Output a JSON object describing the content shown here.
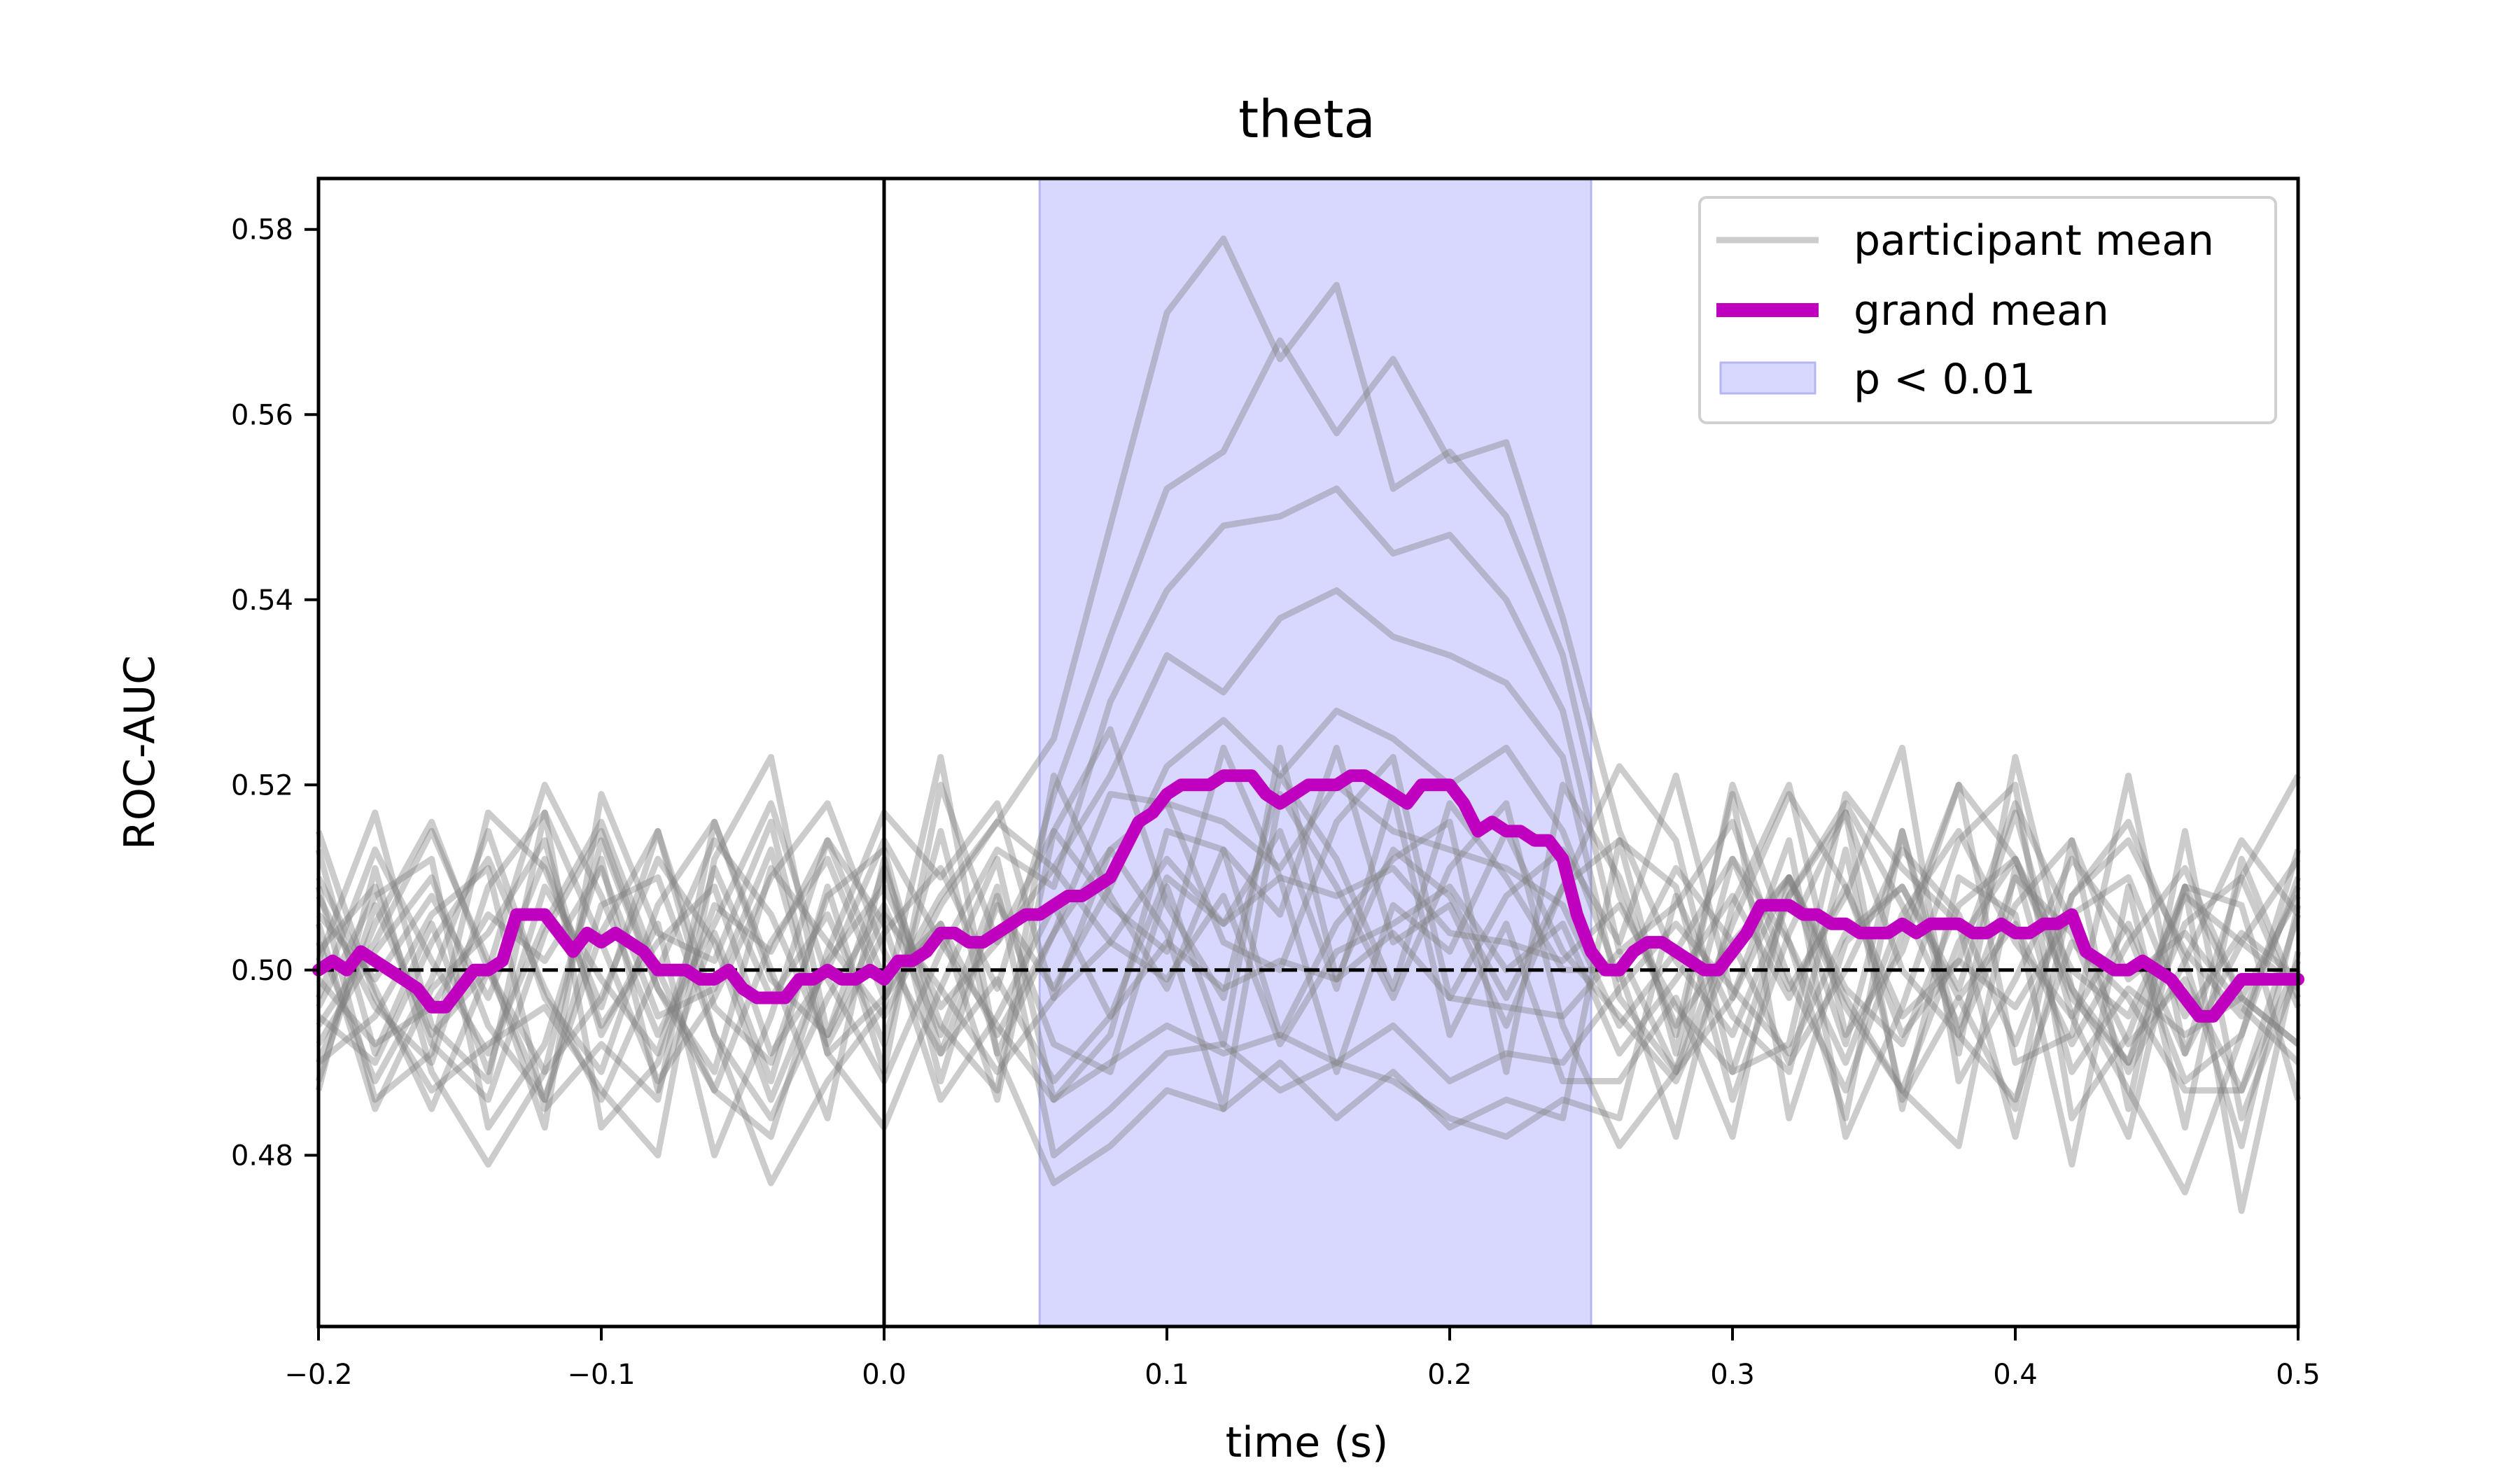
{
  "chart_data": {
    "type": "line",
    "title": "theta",
    "xlabel": "time (s)",
    "ylabel": "ROC-AUC",
    "xlim": [
      -0.2,
      0.5
    ],
    "ylim": [
      0.4615,
      0.5855
    ],
    "xticks": [
      -0.2,
      -0.1,
      0.0,
      0.1,
      0.2,
      0.3,
      0.4,
      0.5
    ],
    "xtick_labels": [
      "−0.2",
      "−0.1",
      "0.0",
      "0.1",
      "0.2",
      "0.3",
      "0.4",
      "0.5"
    ],
    "yticks": [
      0.48,
      0.5,
      0.52,
      0.54,
      0.56,
      0.58
    ],
    "ytick_labels": [
      "0.48",
      "0.50",
      "0.52",
      "0.54",
      "0.56",
      "0.58"
    ],
    "grid": false,
    "legend_position": "top-right",
    "reference_lines": {
      "chance_level": 0.5,
      "stimulus_onset": 0.0
    },
    "significance_window": {
      "label": "p < 0.01",
      "start": 0.055,
      "end": 0.25,
      "color": "#d8d8ff"
    },
    "series": [
      {
        "name": "grand mean",
        "color": "#bf00bf",
        "x": [
          -0.2,
          -0.195,
          -0.19,
          -0.185,
          -0.18,
          -0.175,
          -0.17,
          -0.165,
          -0.16,
          -0.155,
          -0.15,
          -0.145,
          -0.14,
          -0.135,
          -0.13,
          -0.125,
          -0.12,
          -0.115,
          -0.11,
          -0.105,
          -0.1,
          -0.095,
          -0.09,
          -0.085,
          -0.08,
          -0.075,
          -0.07,
          -0.065,
          -0.06,
          -0.055,
          -0.05,
          -0.045,
          -0.04,
          -0.035,
          -0.03,
          -0.025,
          -0.02,
          -0.015,
          -0.01,
          -0.005,
          0.0,
          0.005,
          0.01,
          0.015,
          0.02,
          0.025,
          0.03,
          0.035,
          0.04,
          0.045,
          0.05,
          0.055,
          0.06,
          0.065,
          0.07,
          0.075,
          0.08,
          0.085,
          0.09,
          0.095,
          0.1,
          0.105,
          0.11,
          0.115,
          0.12,
          0.125,
          0.13,
          0.135,
          0.14,
          0.145,
          0.15,
          0.155,
          0.16,
          0.165,
          0.17,
          0.175,
          0.18,
          0.185,
          0.19,
          0.195,
          0.2,
          0.205,
          0.21,
          0.215,
          0.22,
          0.225,
          0.23,
          0.235,
          0.24,
          0.245,
          0.25,
          0.255,
          0.26,
          0.265,
          0.27,
          0.275,
          0.28,
          0.285,
          0.29,
          0.295,
          0.3,
          0.305,
          0.31,
          0.315,
          0.32,
          0.325,
          0.33,
          0.335,
          0.34,
          0.345,
          0.35,
          0.355,
          0.36,
          0.365,
          0.37,
          0.375,
          0.38,
          0.385,
          0.39,
          0.395,
          0.4,
          0.405,
          0.41,
          0.415,
          0.42,
          0.425,
          0.43,
          0.435,
          0.44,
          0.445,
          0.45,
          0.455,
          0.46,
          0.465,
          0.47,
          0.475,
          0.48,
          0.485,
          0.49,
          0.495,
          0.5
        ],
        "values": [
          0.5,
          0.501,
          0.5,
          0.502,
          0.501,
          0.5,
          0.499,
          0.498,
          0.496,
          0.496,
          0.498,
          0.5,
          0.5,
          0.501,
          0.506,
          0.506,
          0.506,
          0.504,
          0.502,
          0.504,
          0.503,
          0.504,
          0.503,
          0.502,
          0.5,
          0.5,
          0.5,
          0.499,
          0.499,
          0.5,
          0.498,
          0.497,
          0.497,
          0.497,
          0.499,
          0.499,
          0.5,
          0.499,
          0.499,
          0.5,
          0.499,
          0.501,
          0.501,
          0.502,
          0.504,
          0.504,
          0.503,
          0.503,
          0.504,
          0.505,
          0.506,
          0.506,
          0.507,
          0.508,
          0.508,
          0.509,
          0.51,
          0.513,
          0.516,
          0.517,
          0.519,
          0.52,
          0.52,
          0.52,
          0.521,
          0.521,
          0.521,
          0.519,
          0.518,
          0.519,
          0.52,
          0.52,
          0.52,
          0.521,
          0.521,
          0.52,
          0.519,
          0.518,
          0.52,
          0.52,
          0.52,
          0.518,
          0.515,
          0.516,
          0.515,
          0.515,
          0.514,
          0.514,
          0.512,
          0.506,
          0.502,
          0.5,
          0.5,
          0.502,
          0.503,
          0.503,
          0.502,
          0.501,
          0.5,
          0.5,
          0.502,
          0.504,
          0.507,
          0.507,
          0.507,
          0.506,
          0.506,
          0.505,
          0.505,
          0.504,
          0.504,
          0.504,
          0.505,
          0.504,
          0.505,
          0.505,
          0.505,
          0.504,
          0.504,
          0.505,
          0.504,
          0.504,
          0.505,
          0.505,
          0.506,
          0.502,
          0.501,
          0.5,
          0.5,
          0.501,
          0.5,
          0.499,
          0.497,
          0.495,
          0.495,
          0.497,
          0.499,
          0.499,
          0.499,
          0.499,
          0.499
        ]
      }
    ],
    "participant_series": {
      "name": "participant mean",
      "color": "#808080",
      "opacity": 0.4,
      "x": [
        -0.2,
        -0.18,
        -0.16,
        -0.14,
        -0.12,
        -0.1,
        -0.08,
        -0.06,
        -0.04,
        -0.02,
        0.0,
        0.02,
        0.04,
        0.06,
        0.08,
        0.1,
        0.12,
        0.14,
        0.16,
        0.18,
        0.2,
        0.22,
        0.24,
        0.26,
        0.28,
        0.3,
        0.32,
        0.34,
        0.36,
        0.38,
        0.4,
        0.42,
        0.44,
        0.46,
        0.48,
        0.5
      ],
      "lines": [
        [
          0.502,
          0.509,
          0.492,
          0.486,
          0.504,
          0.515,
          0.498,
          0.489,
          0.511,
          0.503,
          0.495,
          0.507,
          0.516,
          0.525,
          0.548,
          0.571,
          0.579,
          0.566,
          0.574,
          0.552,
          0.556,
          0.549,
          0.534,
          0.508,
          0.494,
          0.503,
          0.51,
          0.498,
          0.492,
          0.507,
          0.512,
          0.5,
          0.495,
          0.508,
          0.503,
          0.498
        ],
        [
          0.495,
          0.49,
          0.503,
          0.512,
          0.498,
          0.486,
          0.5,
          0.514,
          0.506,
          0.492,
          0.504,
          0.511,
          0.498,
          0.519,
          0.536,
          0.552,
          0.556,
          0.568,
          0.558,
          0.566,
          0.555,
          0.557,
          0.538,
          0.515,
          0.501,
          0.493,
          0.508,
          0.518,
          0.507,
          0.494,
          0.51,
          0.504,
          0.489,
          0.501,
          0.514,
          0.506
        ],
        [
          0.51,
          0.498,
          0.485,
          0.5,
          0.52,
          0.508,
          0.493,
          0.505,
          0.518,
          0.499,
          0.488,
          0.502,
          0.513,
          0.509,
          0.529,
          0.541,
          0.548,
          0.549,
          0.552,
          0.545,
          0.547,
          0.54,
          0.528,
          0.502,
          0.507,
          0.516,
          0.499,
          0.487,
          0.504,
          0.52,
          0.512,
          0.497,
          0.49,
          0.505,
          0.51,
          0.496
        ],
        [
          0.49,
          0.505,
          0.516,
          0.5,
          0.489,
          0.497,
          0.512,
          0.503,
          0.486,
          0.501,
          0.509,
          0.496,
          0.503,
          0.511,
          0.521,
          0.534,
          0.53,
          0.538,
          0.541,
          0.536,
          0.534,
          0.531,
          0.523,
          0.497,
          0.489,
          0.505,
          0.519,
          0.509,
          0.495,
          0.501,
          0.518,
          0.505,
          0.492,
          0.499,
          0.487,
          0.501
        ],
        [
          0.508,
          0.496,
          0.49,
          0.509,
          0.517,
          0.503,
          0.488,
          0.497,
          0.51,
          0.518,
          0.502,
          0.491,
          0.507,
          0.498,
          0.509,
          0.522,
          0.527,
          0.521,
          0.528,
          0.525,
          0.52,
          0.524,
          0.515,
          0.499,
          0.511,
          0.503,
          0.49,
          0.5,
          0.513,
          0.506,
          0.492,
          0.508,
          0.514,
          0.502,
          0.495,
          0.509
        ],
        [
          0.497,
          0.513,
          0.501,
          0.491,
          0.505,
          0.516,
          0.5,
          0.487,
          0.503,
          0.512,
          0.497,
          0.505,
          0.493,
          0.504,
          0.513,
          0.518,
          0.516,
          0.511,
          0.52,
          0.515,
          0.513,
          0.511,
          0.507,
          0.494,
          0.502,
          0.512,
          0.503,
          0.49,
          0.506,
          0.515,
          0.503,
          0.495,
          0.505,
          0.491,
          0.503,
          0.512
        ],
        [
          0.503,
          0.488,
          0.499,
          0.515,
          0.497,
          0.489,
          0.507,
          0.516,
          0.499,
          0.493,
          0.506,
          0.498,
          0.489,
          0.497,
          0.503,
          0.512,
          0.505,
          0.51,
          0.508,
          0.511,
          0.504,
          0.503,
          0.501,
          0.507,
          0.496,
          0.489,
          0.508,
          0.517,
          0.5,
          0.493,
          0.507,
          0.514,
          0.499,
          0.504,
          0.496,
          0.49
        ],
        [
          0.492,
          0.502,
          0.51,
          0.494,
          0.486,
          0.504,
          0.515,
          0.496,
          0.49,
          0.508,
          0.513,
          0.491,
          0.499,
          0.488,
          0.495,
          0.503,
          0.498,
          0.501,
          0.499,
          0.504,
          0.497,
          0.496,
          0.495,
          0.502,
          0.489,
          0.497,
          0.51,
          0.496,
          0.487,
          0.503,
          0.512,
          0.498,
          0.49,
          0.509,
          0.497,
          0.492
        ],
        [
          0.506,
          0.499,
          0.508,
          0.497,
          0.512,
          0.494,
          0.503,
          0.509,
          0.491,
          0.5,
          0.514,
          0.503,
          0.494,
          0.486,
          0.49,
          0.494,
          0.491,
          0.493,
          0.49,
          0.494,
          0.488,
          0.491,
          0.49,
          0.498,
          0.505,
          0.498,
          0.491,
          0.504,
          0.509,
          0.497,
          0.505,
          0.492,
          0.503,
          0.511,
          0.497,
          0.508
        ],
        [
          0.499,
          0.492,
          0.496,
          0.506,
          0.501,
          0.511,
          0.495,
          0.498,
          0.513,
          0.491,
          0.497,
          0.508,
          0.516,
          0.511,
          0.503,
          0.499,
          0.508,
          0.492,
          0.502,
          0.505,
          0.509,
          0.5,
          0.505,
          0.491,
          0.499,
          0.508,
          0.497,
          0.509,
          0.493,
          0.501,
          0.496,
          0.506,
          0.51,
          0.495,
          0.504,
          0.499
        ],
        [
          0.513,
          0.491,
          0.505,
          0.489,
          0.509,
          0.499,
          0.491,
          0.511,
          0.497,
          0.506,
          0.492,
          0.515,
          0.491,
          0.477,
          0.481,
          0.487,
          0.485,
          0.49,
          0.484,
          0.489,
          0.483,
          0.486,
          0.484,
          0.514,
          0.491,
          0.52,
          0.503,
          0.484,
          0.515,
          0.491,
          0.523,
          0.498,
          0.487,
          0.476,
          0.493,
          0.513
        ],
        [
          0.488,
          0.507,
          0.493,
          0.5,
          0.486,
          0.507,
          0.51,
          0.493,
          0.484,
          0.497,
          0.507,
          0.493,
          0.509,
          0.48,
          0.485,
          0.491,
          0.492,
          0.487,
          0.49,
          0.488,
          0.484,
          0.482,
          0.486,
          0.484,
          0.508,
          0.495,
          0.489,
          0.513,
          0.486,
          0.497,
          0.485,
          0.514,
          0.485,
          0.515,
          0.484,
          0.5
        ],
        [
          0.496,
          0.508,
          0.512,
          0.483,
          0.492,
          0.512,
          0.487,
          0.504,
          0.488,
          0.509,
          0.489,
          0.52,
          0.503,
          0.515,
          0.526,
          0.507,
          0.497,
          0.521,
          0.512,
          0.498,
          0.518,
          0.51,
          0.5,
          0.5,
          0.482,
          0.507,
          0.52,
          0.493,
          0.502,
          0.52,
          0.49,
          0.493,
          0.521,
          0.491,
          0.51,
          0.521
        ],
        [
          0.505,
          0.485,
          0.498,
          0.504,
          0.514,
          0.493,
          0.505,
          0.48,
          0.495,
          0.514,
          0.505,
          0.486,
          0.495,
          0.507,
          0.495,
          0.51,
          0.505,
          0.515,
          0.498,
          0.519,
          0.493,
          0.505,
          0.488,
          0.488,
          0.497,
          0.482,
          0.51,
          0.497,
          0.487,
          0.481,
          0.511,
          0.489,
          0.498,
          0.493,
          0.497,
          0.492
        ],
        [
          0.515,
          0.497,
          0.487,
          0.492,
          0.496,
          0.487,
          0.48,
          0.512,
          0.523,
          0.493,
          0.511,
          0.494,
          0.487,
          0.521,
          0.508,
          0.498,
          0.513,
          0.506,
          0.524,
          0.503,
          0.507,
          0.494,
          0.509,
          0.522,
          0.514,
          0.489,
          0.492,
          0.519,
          0.511,
          0.505,
          0.482,
          0.508,
          0.516,
          0.501,
          0.481,
          0.507
        ],
        [
          0.487,
          0.511,
          0.489,
          0.479,
          0.489,
          0.514,
          0.498,
          0.487,
          0.482,
          0.502,
          0.517,
          0.51,
          0.518,
          0.497,
          0.513,
          0.504,
          0.485,
          0.519,
          0.509,
          0.497,
          0.511,
          0.518,
          0.494,
          0.481,
          0.489,
          0.512,
          0.498,
          0.508,
          0.524,
          0.488,
          0.499,
          0.512,
          0.504,
          0.488,
          0.493,
          0.51
        ],
        [
          0.509,
          0.486,
          0.491,
          0.517,
          0.511,
          0.496,
          0.515,
          0.493,
          0.477,
          0.488,
          0.496,
          0.523,
          0.491,
          0.504,
          0.519,
          0.518,
          0.503,
          0.5,
          0.516,
          0.523,
          0.497,
          0.508,
          0.513,
          0.503,
          0.521,
          0.497,
          0.514,
          0.482,
          0.496,
          0.514,
          0.52,
          0.484,
          0.493,
          0.509,
          0.507,
          0.486
        ],
        [
          0.494,
          0.503,
          0.515,
          0.501,
          0.483,
          0.519,
          0.504,
          0.501,
          0.516,
          0.491,
          0.483,
          0.498,
          0.512,
          0.486,
          0.493,
          0.515,
          0.513,
          0.493,
          0.505,
          0.512,
          0.516,
          0.489,
          0.52,
          0.51,
          0.493,
          0.519,
          0.484,
          0.503,
          0.509,
          0.498,
          0.517,
          0.495,
          0.482,
          0.509,
          0.474,
          0.502
        ],
        [
          0.501,
          0.517,
          0.494,
          0.488,
          0.517,
          0.483,
          0.49,
          0.507,
          0.502,
          0.514,
          0.499,
          0.505,
          0.486,
          0.515,
          0.507,
          0.502,
          0.524,
          0.51,
          0.489,
          0.507,
          0.502,
          0.515,
          0.502,
          0.495,
          0.488,
          0.502,
          0.51,
          0.492,
          0.515,
          0.493,
          0.486,
          0.503,
          0.497,
          0.487,
          0.487,
          0.506
        ],
        [
          0.49,
          0.495,
          0.506,
          0.511,
          0.485,
          0.492,
          0.486,
          0.516,
          0.5,
          0.484,
          0.512,
          0.488,
          0.508,
          0.492,
          0.489,
          0.509,
          0.492,
          0.524,
          0.499,
          0.513,
          0.508,
          0.497,
          0.509,
          0.514,
          0.509,
          0.486,
          0.504,
          0.517,
          0.485,
          0.51,
          0.506,
          0.479,
          0.509,
          0.483,
          0.512,
          0.497
        ]
      ]
    }
  },
  "legend": {
    "items": [
      {
        "label": "participant mean",
        "kind": "line",
        "color": "#808080"
      },
      {
        "label": "grand mean",
        "kind": "thick-line",
        "color": "#bf00bf"
      },
      {
        "label": "p < 0.01",
        "kind": "patch",
        "color": "#d8d8ff"
      }
    ]
  }
}
